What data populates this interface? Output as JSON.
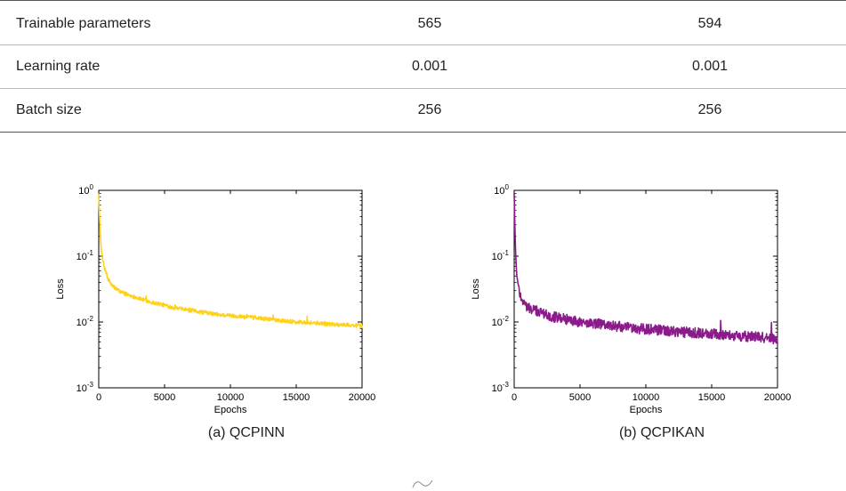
{
  "table": {
    "rows": [
      {
        "label": "Trainable parameters",
        "qcpinn": "565",
        "qcpikan": "594"
      },
      {
        "label": "Learning rate",
        "qcpinn": "0.001",
        "qcpikan": "0.001"
      },
      {
        "label": "Batch size",
        "qcpinn": "256",
        "qcpikan": "256"
      }
    ]
  },
  "captions": {
    "a": "(a) QCPINN",
    "b": "(b) QCPIKAN"
  },
  "chart_data": [
    {
      "type": "line",
      "title": "",
      "xlabel": "Epochs",
      "ylabel": "Loss",
      "x_ticks": [
        "0",
        "5000",
        "10000",
        "15000",
        "20000"
      ],
      "y_ticks": [
        "10^0",
        "10^-1",
        "10^-2",
        "10^-3"
      ],
      "xlim": [
        0,
        20000
      ],
      "ylim": [
        0.001,
        1
      ],
      "yscale": "log",
      "grid": false,
      "color": "#FFD21A",
      "series": [
        {
          "x": [
            0,
            100,
            200,
            400,
            700,
            1000,
            1500,
            2000,
            3000,
            4000,
            5000,
            6000,
            7000,
            8000,
            9000,
            10000,
            11000,
            12000,
            13000,
            14000,
            15000,
            16000,
            17000,
            18000,
            19000,
            20000
          ],
          "values": [
            0.9,
            0.25,
            0.12,
            0.07,
            0.045,
            0.036,
            0.03,
            0.027,
            0.023,
            0.02,
            0.018,
            0.016,
            0.015,
            0.014,
            0.013,
            0.0125,
            0.012,
            0.0115,
            0.011,
            0.0105,
            0.01,
            0.0098,
            0.0095,
            0.0092,
            0.009,
            0.0088
          ]
        }
      ]
    },
    {
      "type": "line",
      "title": "",
      "xlabel": "Epochs",
      "ylabel": "Loss",
      "x_ticks": [
        "0",
        "5000",
        "10000",
        "15000",
        "20000"
      ],
      "y_ticks": [
        "10^0",
        "10^-1",
        "10^-2",
        "10^-3"
      ],
      "xlim": [
        0,
        20000
      ],
      "ylim": [
        0.001,
        1
      ],
      "yscale": "log",
      "grid": false,
      "color": "#8B1A8B",
      "series": [
        {
          "x": [
            0,
            100,
            200,
            400,
            700,
            1000,
            1500,
            2000,
            3000,
            4000,
            5000,
            6000,
            7000,
            8000,
            9000,
            10000,
            11000,
            12000,
            13000,
            14000,
            15000,
            16000,
            17000,
            18000,
            19000,
            20000
          ],
          "values": [
            0.9,
            0.12,
            0.05,
            0.028,
            0.02,
            0.017,
            0.015,
            0.014,
            0.012,
            0.011,
            0.01,
            0.0095,
            0.009,
            0.0085,
            0.008,
            0.0078,
            0.0075,
            0.0072,
            0.007,
            0.0068,
            0.0066,
            0.0064,
            0.0062,
            0.006,
            0.0058,
            0.0055
          ]
        }
      ]
    }
  ]
}
